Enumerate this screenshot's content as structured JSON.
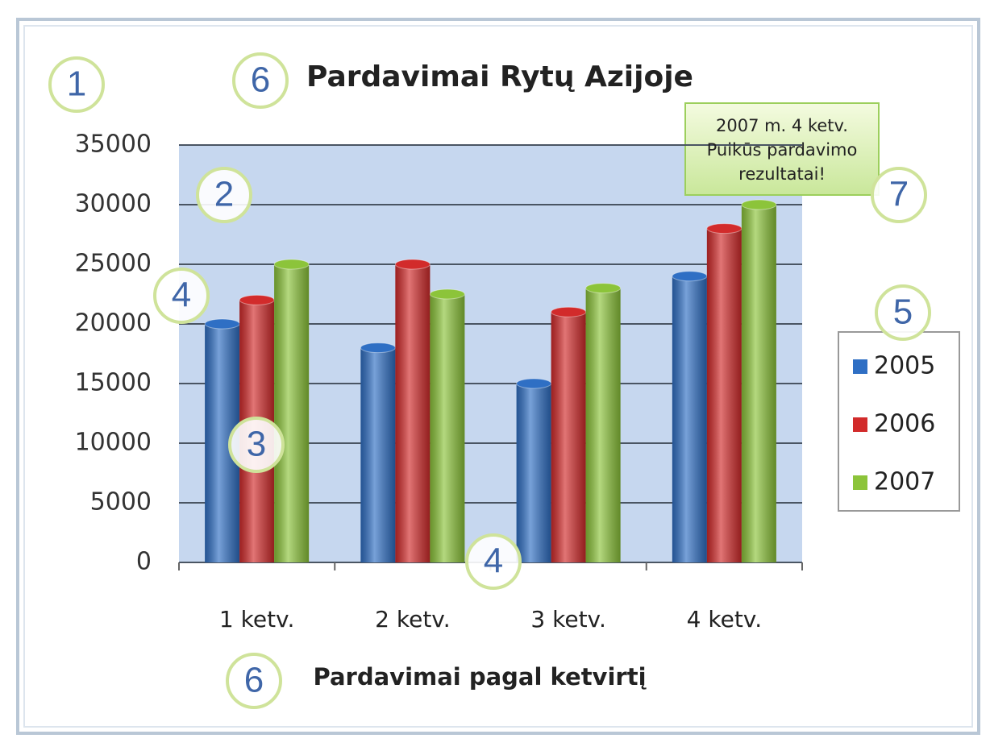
{
  "chart_data": {
    "type": "bar",
    "title": "Pardavimai Rytų Azijoje",
    "x_axis_title": "Pardavimai pagal ketvirtį",
    "categories": [
      "1 ketv.",
      "2 ketv.",
      "3 ketv.",
      "4 ketv."
    ],
    "series": [
      {
        "name": "2005",
        "color": "#2f6fc4",
        "values": [
          20000,
          18000,
          15000,
          24000
        ]
      },
      {
        "name": "2006",
        "color": "#d22b2b",
        "values": [
          22000,
          25000,
          21000,
          28000
        ]
      },
      {
        "name": "2007",
        "color": "#8cc43a",
        "values": [
          25000,
          22500,
          23000,
          30000
        ]
      }
    ],
    "ylim": [
      0,
      35000
    ],
    "yticks": [
      0,
      5000,
      10000,
      15000,
      20000,
      25000,
      30000,
      35000
    ],
    "grid": true,
    "legend": "right",
    "annotation": [
      "2007 m. 4 ketv.",
      "Puikūs pardavimo",
      "rezultatai!"
    ],
    "callouts": [
      "1",
      "6",
      "2",
      "4",
      "3",
      "4",
      "5",
      "7",
      "6"
    ]
  }
}
